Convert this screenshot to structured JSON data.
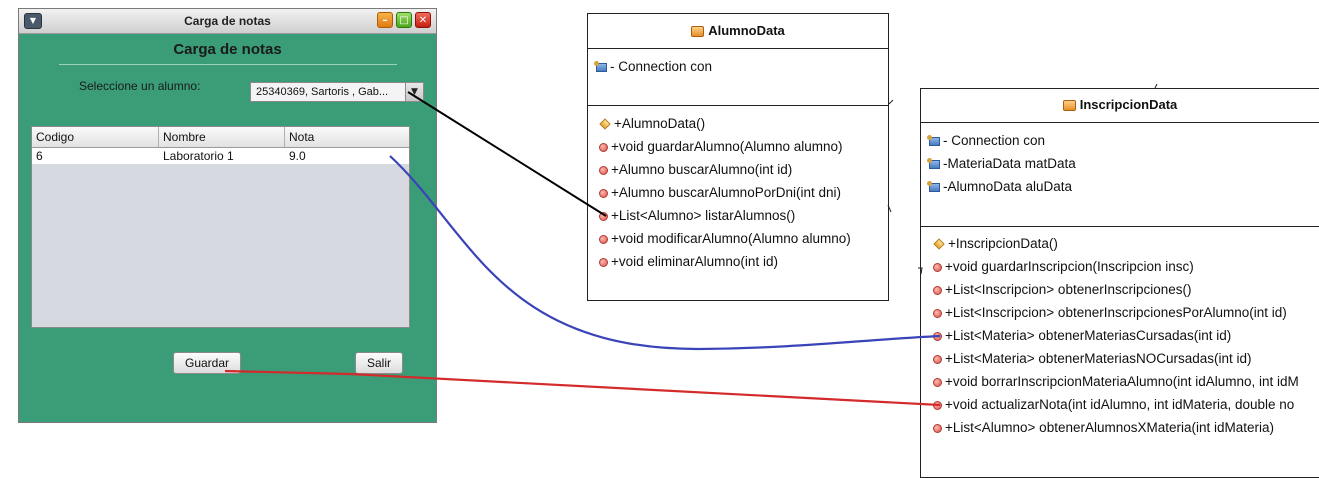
{
  "window": {
    "title": "Carga de notas",
    "heading": "Carga de notas",
    "select_label": "Seleccione un alumno:",
    "selected_alumno": "25340369, Sartoris , Gab...",
    "table": {
      "columns": [
        "Codigo",
        "Nombre",
        "Nota"
      ],
      "rows": [
        [
          "6",
          "Laboratorio 1",
          "9.0"
        ]
      ]
    },
    "buttons": {
      "guardar": "Guardar",
      "salir": "Salir"
    }
  },
  "alumno_data": {
    "class_name": "AlumnoData",
    "fields": [
      "- Connection con"
    ],
    "methods": [
      "+AlumnoData()",
      "+void guardarAlumno(Alumno alumno)",
      "+Alumno buscarAlumno(int id)",
      "+Alumno buscarAlumnoPorDni(int dni)",
      "+List<Alumno> listarAlumnos()",
      "+void modificarAlumno(Alumno alumno)",
      "+void eliminarAlumno(int id)"
    ]
  },
  "inscripcion_data": {
    "class_name": "InscripcionData",
    "fields": [
      "- Connection con",
      "-MateriaData matData",
      "-AlumnoData aluData"
    ],
    "methods": [
      "+InscripcionData()",
      "+void guardarInscripcion(Inscripcion insc)",
      "+List<Inscripcion> obtenerInscripciones()",
      "+List<Inscripcion> obtenerInscripcionesPorAlumno(int id)",
      "+List<Materia> obtenerMateriasCursadas(int id)",
      "+List<Materia> obtenerMateriasNOCursadas(int id)",
      "+void borrarInscripcionMateriaAlumno(int idAlumno, int idM",
      "+void actualizarNota(int idAlumno, int idMateria, double no",
      "+List<Alumno> obtenerAlumnosXMateria(int idMateria)"
    ]
  },
  "colors": {
    "window_bg": "#3a9d78",
    "connector_black": "#000000",
    "connector_blue": "#3a44b8",
    "connector_red": "#d42a2a"
  }
}
